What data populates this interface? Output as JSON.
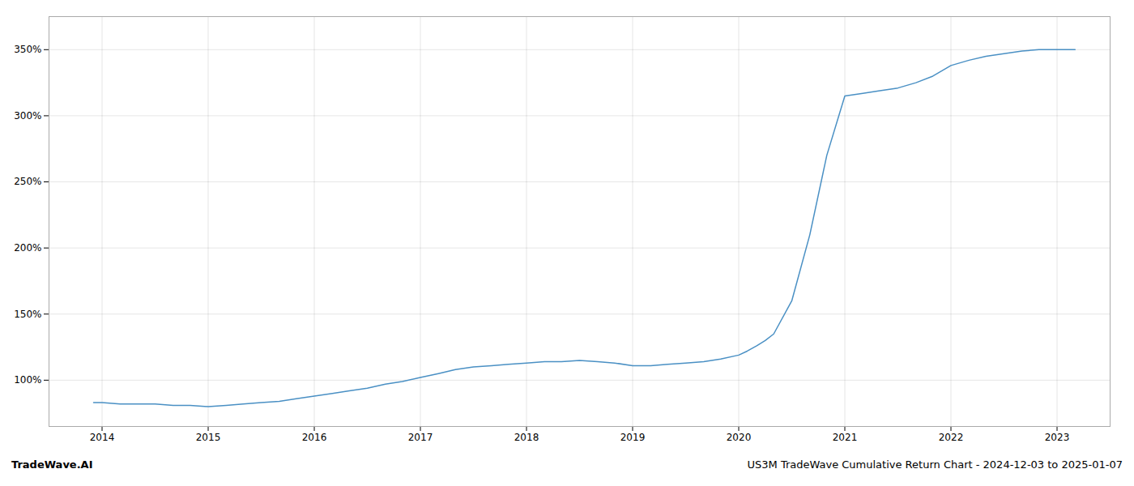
{
  "chart_data": {
    "type": "line",
    "title": "US3M TradeWave Cumulative Return Chart - 2024-12-03 to 2025-01-07",
    "annotations": [
      "TradeWave.AI"
    ],
    "color": "#4a90c4",
    "x": [
      2013.92,
      2014.0,
      2014.17,
      2014.33,
      2014.5,
      2014.67,
      2014.83,
      2015.0,
      2015.17,
      2015.33,
      2015.5,
      2015.67,
      2015.83,
      2016.0,
      2016.17,
      2016.33,
      2016.5,
      2016.67,
      2016.83,
      2017.0,
      2017.17,
      2017.33,
      2017.5,
      2017.67,
      2017.83,
      2018.0,
      2018.17,
      2018.33,
      2018.5,
      2018.67,
      2018.83,
      2019.0,
      2019.17,
      2019.33,
      2019.5,
      2019.67,
      2019.83,
      2020.0,
      2020.08,
      2020.17,
      2020.25,
      2020.33,
      2020.5,
      2020.67,
      2020.83,
      2021.0,
      2021.17,
      2021.33,
      2021.5,
      2021.67,
      2021.83,
      2022.0,
      2022.17,
      2022.33,
      2022.5,
      2022.67,
      2022.83,
      2023.0,
      2023.17
    ],
    "values": [
      83,
      83,
      82,
      82,
      82,
      81,
      81,
      80,
      81,
      82,
      83,
      84,
      86,
      88,
      90,
      92,
      94,
      97,
      99,
      102,
      105,
      108,
      110,
      111,
      112,
      113,
      114,
      114,
      115,
      114,
      113,
      111,
      111,
      112,
      113,
      114,
      116,
      119,
      122,
      126,
      130,
      135,
      160,
      210,
      270,
      315,
      317,
      319,
      321,
      325,
      330,
      338,
      342,
      345,
      347,
      349,
      350,
      350,
      350
    ],
    "xlim": [
      2013.5,
      2023.5
    ],
    "ylim": [
      65,
      375
    ],
    "xticks": [
      2014,
      2015,
      2016,
      2017,
      2018,
      2019,
      2020,
      2021,
      2022,
      2023
    ],
    "yticks": [
      {
        "value": 100,
        "label": "100%"
      },
      {
        "value": 150,
        "label": "150%"
      },
      {
        "value": 200,
        "label": "200%"
      },
      {
        "value": 250,
        "label": "250%"
      },
      {
        "value": 300,
        "label": "300%"
      },
      {
        "value": 350,
        "label": "350%"
      }
    ],
    "grid": true
  }
}
